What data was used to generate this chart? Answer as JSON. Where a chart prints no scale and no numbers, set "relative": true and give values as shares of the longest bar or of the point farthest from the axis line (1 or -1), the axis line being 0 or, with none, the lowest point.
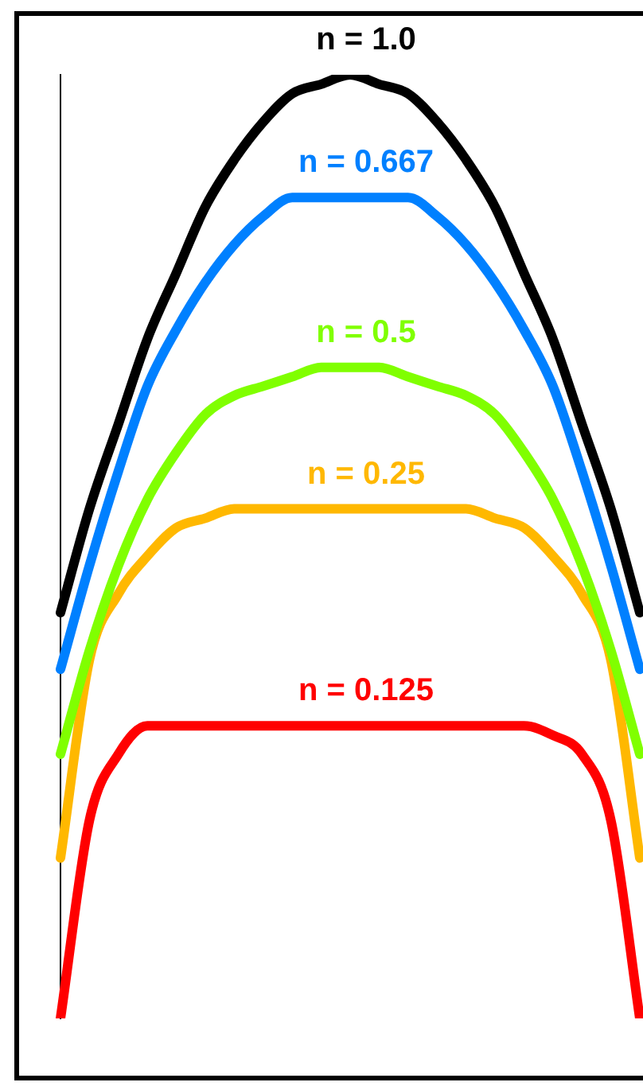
{
  "chart_data": {
    "type": "line",
    "relative": true,
    "legend": false,
    "marker": "none",
    "line_style": "solid",
    "categories": [
      null,
      null,
      null,
      null,
      null,
      null,
      null,
      null,
      null,
      null,
      null,
      null,
      null,
      null,
      null,
      null,
      null,
      null,
      null,
      null,
      null
    ],
    "series": [
      {
        "name": "n = 1.0",
        "color": "#000000",
        "values": [
          0.43,
          0.54,
          0.63,
          0.72,
          0.79,
          0.86,
          0.91,
          0.95,
          0.98,
          0.99,
          1.0,
          0.99,
          0.98,
          0.95,
          0.91,
          0.86,
          0.79,
          0.72,
          0.63,
          0.54,
          0.43
        ]
      },
      {
        "name": "n = 0.667",
        "color": "#0080ff",
        "values": [
          0.37,
          0.48,
          0.58,
          0.67,
          0.73,
          0.78,
          0.82,
          0.85,
          0.87,
          0.87,
          0.87,
          0.87,
          0.87,
          0.85,
          0.82,
          0.78,
          0.73,
          0.67,
          0.58,
          0.48,
          0.37
        ]
      },
      {
        "name": "n = 0.5",
        "color": "#80ff00",
        "values": [
          0.28,
          0.39,
          0.48,
          0.55,
          0.6,
          0.64,
          0.66,
          0.67,
          0.68,
          0.69,
          0.69,
          0.69,
          0.68,
          0.67,
          0.66,
          0.64,
          0.6,
          0.55,
          0.48,
          0.39,
          0.28
        ]
      },
      {
        "name": "n = 0.25",
        "color": "#ffb800",
        "values": [
          0.17,
          0.38,
          0.45,
          0.49,
          0.52,
          0.53,
          0.54,
          0.54,
          0.54,
          0.54,
          0.54,
          0.54,
          0.54,
          0.54,
          0.54,
          0.53,
          0.52,
          0.49,
          0.45,
          0.38,
          0.17
        ]
      },
      {
        "name": "n = 0.125",
        "color": "#ff0000",
        "values": [
          0.0,
          0.21,
          0.28,
          0.31,
          0.31,
          0.31,
          0.31,
          0.31,
          0.31,
          0.31,
          0.31,
          0.31,
          0.31,
          0.31,
          0.31,
          0.31,
          0.31,
          0.3,
          0.28,
          0.21,
          0.0
        ]
      }
    ]
  }
}
